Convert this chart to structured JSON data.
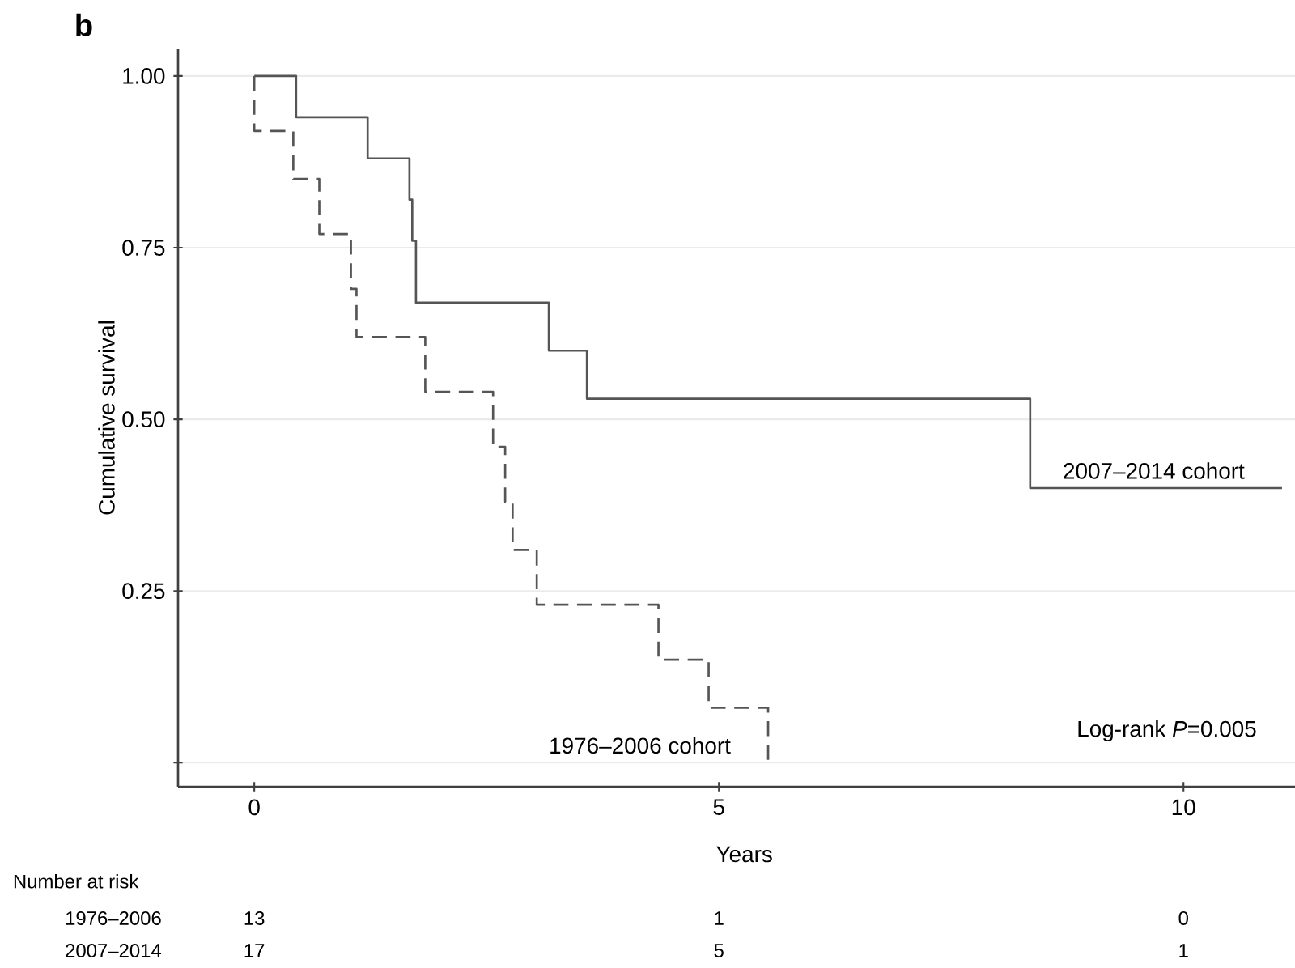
{
  "chart_data": {
    "type": "step",
    "title": "b",
    "xlabel": "Years",
    "ylabel": "Cumulative survival",
    "xlim": [
      -0.82,
      11.2
    ],
    "ylim": [
      -0.035,
      1.04
    ],
    "xticks": [
      0,
      5,
      10
    ],
    "yticks": [
      {
        "value": 0,
        "label": null
      },
      {
        "value": 0.25,
        "label": "0.25"
      },
      {
        "value": 0.5,
        "label": "0.50"
      },
      {
        "value": 0.75,
        "label": "0.75"
      },
      {
        "value": 1,
        "label": "1.00"
      }
    ],
    "grid": "y",
    "marker": "none",
    "series": [
      {
        "name": "2007–2014 cohort",
        "color": "#555555",
        "line_style": "solid",
        "x": [
          0,
          0.45,
          1.22,
          1.67,
          1.7,
          1.74,
          3.17,
          3.58,
          8.35,
          11.06
        ],
        "values": [
          1,
          0.94,
          0.88,
          0.82,
          0.76,
          0.67,
          0.6,
          0.53,
          0.4,
          0.4
        ]
      },
      {
        "name": "1976–2006 cohort",
        "color": "#555555",
        "line_style": "dashed",
        "x": [
          0,
          0,
          0.42,
          0.7,
          1.04,
          1.1,
          1.84,
          2.57,
          2.7,
          2.78,
          3.04,
          4.35,
          4.89,
          5.53
        ],
        "values": [
          1,
          0.92,
          0.85,
          0.77,
          0.69,
          0.62,
          0.54,
          0.46,
          0.38,
          0.31,
          0.23,
          0.15,
          0.08,
          0
        ]
      }
    ],
    "annotations": [
      "Log-rank *P*=0.005",
      "Number at risk",
      "1976–2006",
      "13",
      "1",
      "0",
      "2007–2014",
      "17",
      "5",
      "1"
    ]
  }
}
